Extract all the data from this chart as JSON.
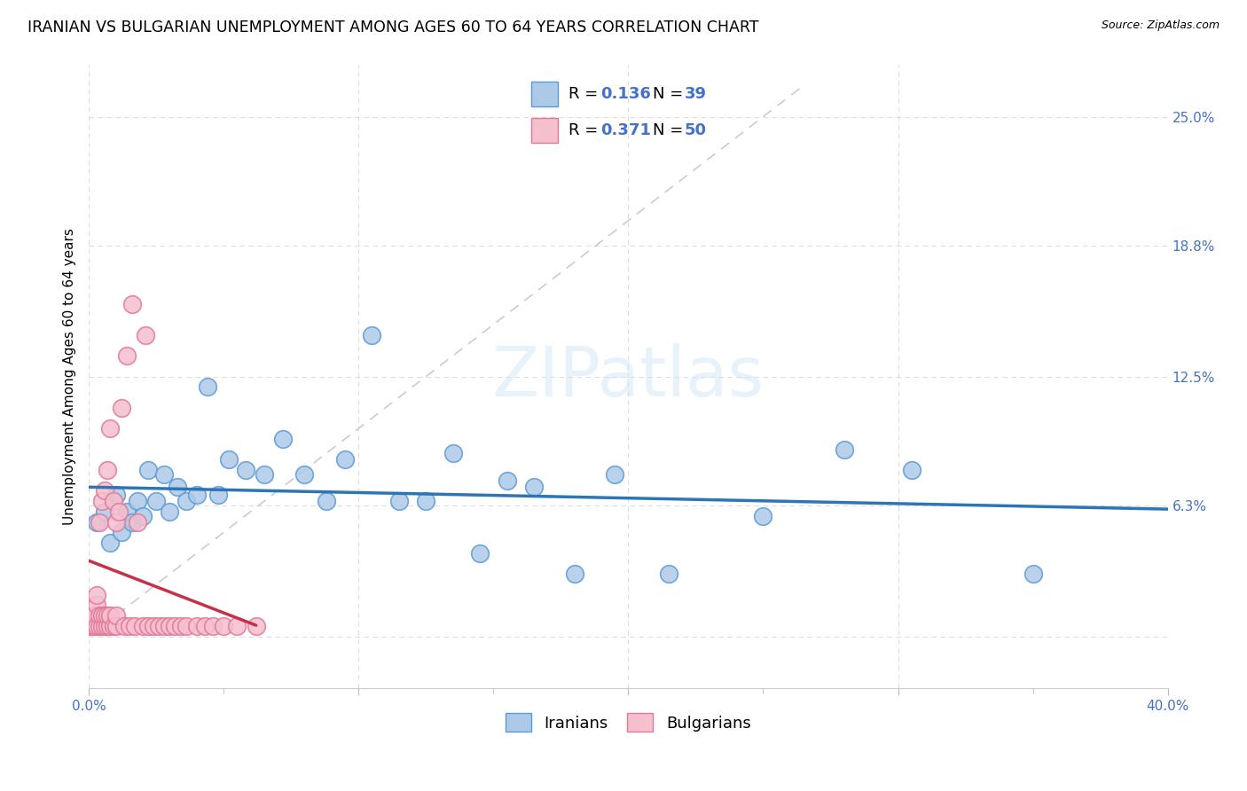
{
  "title": "IRANIAN VS BULGARIAN UNEMPLOYMENT AMONG AGES 60 TO 64 YEARS CORRELATION CHART",
  "source": "Source: ZipAtlas.com",
  "ylabel": "Unemployment Among Ages 60 to 64 years",
  "xlim": [
    0.0,
    0.4
  ],
  "ylim": [
    -0.025,
    0.275
  ],
  "ytick_vals": [
    0.0,
    0.063,
    0.125,
    0.188,
    0.25
  ],
  "ytick_labels": [
    "",
    "6.3%",
    "12.5%",
    "18.8%",
    "25.0%"
  ],
  "xtick_vals": [
    0.0,
    0.1,
    0.2,
    0.3,
    0.4
  ],
  "xtick_labels": [
    "0.0%",
    "",
    "",
    "",
    "40.0%"
  ],
  "watermark": "ZIPatlas",
  "iranians_color": "#adc9e8",
  "bulgarians_color": "#f5bfce",
  "iranians_edge": "#5b9bd5",
  "bulgarians_edge": "#e07898",
  "trend_iranian_color": "#2e75b6",
  "trend_bulgarian_color": "#c8304a",
  "diagonal_color": "#cccccc",
  "R_iranian": 0.136,
  "N_iranian": 39,
  "R_bulgarian": 0.371,
  "N_bulgarian": 50,
  "iranians_x": [
    0.003,
    0.006,
    0.008,
    0.01,
    0.012,
    0.014,
    0.016,
    0.018,
    0.02,
    0.022,
    0.025,
    0.028,
    0.03,
    0.033,
    0.036,
    0.04,
    0.044,
    0.048,
    0.052,
    0.058,
    0.065,
    0.072,
    0.08,
    0.088,
    0.095,
    0.105,
    0.115,
    0.125,
    0.135,
    0.145,
    0.155,
    0.165,
    0.18,
    0.195,
    0.215,
    0.25,
    0.28,
    0.305,
    0.35
  ],
  "iranians_y": [
    0.055,
    0.06,
    0.045,
    0.068,
    0.05,
    0.06,
    0.055,
    0.065,
    0.058,
    0.08,
    0.065,
    0.078,
    0.06,
    0.072,
    0.065,
    0.068,
    0.12,
    0.068,
    0.085,
    0.08,
    0.078,
    0.095,
    0.078,
    0.065,
    0.085,
    0.145,
    0.065,
    0.065,
    0.088,
    0.04,
    0.075,
    0.072,
    0.03,
    0.078,
    0.03,
    0.058,
    0.09,
    0.08,
    0.03
  ],
  "bulgarians_x": [
    0.001,
    0.002,
    0.002,
    0.003,
    0.003,
    0.003,
    0.004,
    0.004,
    0.004,
    0.005,
    0.005,
    0.005,
    0.006,
    0.006,
    0.006,
    0.007,
    0.007,
    0.007,
    0.008,
    0.008,
    0.008,
    0.009,
    0.009,
    0.01,
    0.01,
    0.01,
    0.011,
    0.012,
    0.013,
    0.014,
    0.015,
    0.016,
    0.017,
    0.018,
    0.02,
    0.021,
    0.022,
    0.024,
    0.026,
    0.028,
    0.03,
    0.032,
    0.034,
    0.036,
    0.04,
    0.043,
    0.046,
    0.05,
    0.055,
    0.062
  ],
  "bulgarians_y": [
    0.005,
    0.005,
    0.01,
    0.005,
    0.015,
    0.02,
    0.005,
    0.01,
    0.055,
    0.005,
    0.01,
    0.065,
    0.005,
    0.01,
    0.07,
    0.005,
    0.01,
    0.08,
    0.005,
    0.01,
    0.1,
    0.005,
    0.065,
    0.005,
    0.01,
    0.055,
    0.06,
    0.11,
    0.005,
    0.135,
    0.005,
    0.16,
    0.005,
    0.055,
    0.005,
    0.145,
    0.005,
    0.005,
    0.005,
    0.005,
    0.005,
    0.005,
    0.005,
    0.005,
    0.005,
    0.005,
    0.005,
    0.005,
    0.005,
    0.005
  ],
  "grid_color": "#dddddd",
  "background_color": "#ffffff",
  "title_fontsize": 12.5,
  "axis_label_fontsize": 11,
  "tick_fontsize": 11,
  "legend_fontsize": 13,
  "scatter_size": 200
}
